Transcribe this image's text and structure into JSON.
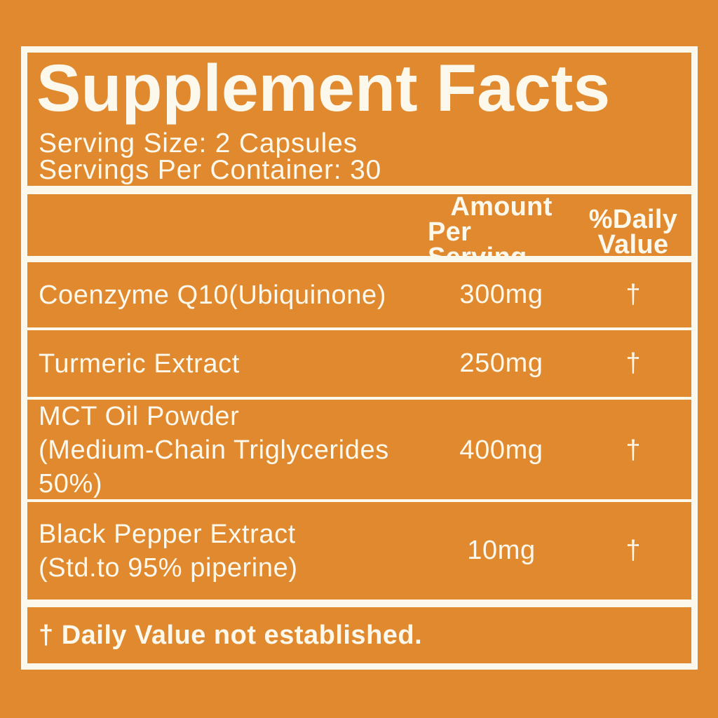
{
  "panel": {
    "title": "Supplement Facts",
    "serving_size": "Serving Size: 2 Capsules",
    "servings_per_container": "Servings Per Container: 30",
    "header": {
      "amount_line1": "Amount",
      "amount_line2": "Per Serving",
      "daily_value_line1": "%Daily",
      "daily_value_line2": "Value"
    },
    "rows": [
      {
        "name_lines": [
          "Coenzyme Q10(Ubiquinone)"
        ],
        "amount": "300mg",
        "daily_value": "†"
      },
      {
        "name_lines": [
          "Turmeric Extract"
        ],
        "amount": "250mg",
        "daily_value": "†"
      },
      {
        "name_lines": [
          "MCT Oil Powder",
          "(Medium-Chain Triglycerides 50%)"
        ],
        "amount": "400mg",
        "daily_value": "†"
      },
      {
        "name_lines": [
          "Black Pepper Extract",
          "(Std.to 95% piperine)"
        ],
        "amount": "10mg",
        "daily_value": "†"
      }
    ],
    "footnote": "† Daily Value not established.",
    "colors": {
      "background_orange": "#E0892E",
      "text_and_border_cream": "#FCF8EC"
    }
  }
}
